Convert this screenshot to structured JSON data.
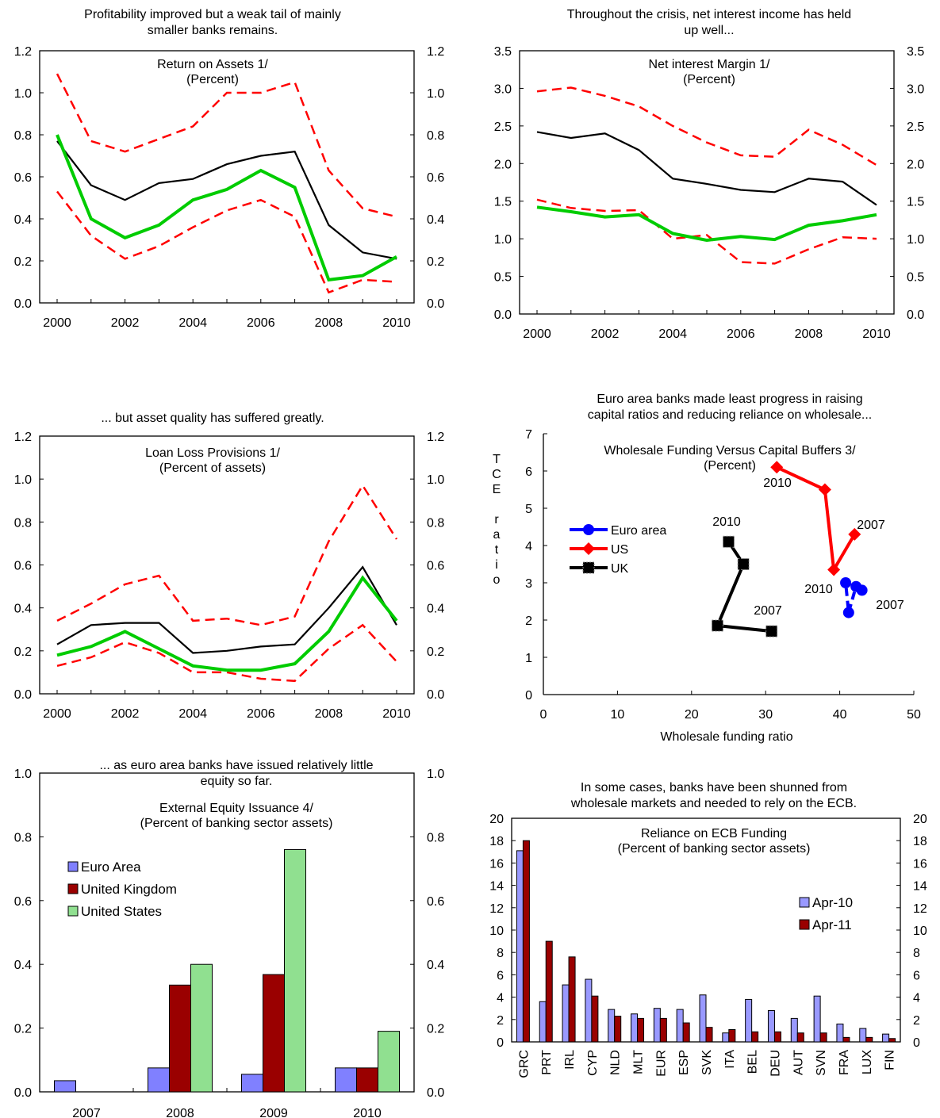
{
  "chart_data": [
    {
      "id": "roa",
      "type": "line",
      "header": [
        "Profitability improved but a weak tail of mainly",
        "smaller banks remains."
      ],
      "title": [
        "Return on Assets 1/",
        "(Percent)"
      ],
      "x": [
        2000,
        2001,
        2002,
        2003,
        2004,
        2005,
        2006,
        2007,
        2008,
        2009,
        2010
      ],
      "xticks": [
        "2000",
        "2002",
        "2004",
        "2006",
        "2008",
        "2010"
      ],
      "ylim": [
        0,
        1.2
      ],
      "yticks": [
        "0.0",
        "0.2",
        "0.4",
        "0.6",
        "0.8",
        "1.0",
        "1.2"
      ],
      "series": [
        {
          "values": [
            1.09,
            0.77,
            0.72,
            0.78,
            0.84,
            1.0,
            1.0,
            1.05,
            0.63,
            0.45,
            0.41
          ],
          "color": "#ff0000",
          "dash": true
        },
        {
          "values": [
            0.53,
            0.32,
            0.21,
            0.27,
            0.36,
            0.44,
            0.49,
            0.41,
            0.05,
            0.11,
            0.1
          ],
          "color": "#ff0000",
          "dash": true
        },
        {
          "values": [
            0.77,
            0.56,
            0.49,
            0.57,
            0.59,
            0.66,
            0.7,
            0.72,
            0.37,
            0.24,
            0.21
          ],
          "color": "#000000",
          "dash": false
        },
        {
          "values": [
            0.8,
            0.4,
            0.31,
            0.37,
            0.49,
            0.54,
            0.63,
            0.55,
            0.11,
            0.13,
            0.22
          ],
          "color": "#00cc00",
          "dash": false
        }
      ]
    },
    {
      "id": "nim",
      "type": "line",
      "header": [
        "Throughout the crisis, net interest income has held",
        "up well..."
      ],
      "title": [
        "Net interest Margin 1/",
        "(Percent)"
      ],
      "x": [
        2000,
        2001,
        2002,
        2003,
        2004,
        2005,
        2006,
        2007,
        2008,
        2009,
        2010
      ],
      "xticks": [
        "2000",
        "2002",
        "2004",
        "2006",
        "2008",
        "2010"
      ],
      "ylim": [
        0,
        3.5
      ],
      "yticks": [
        "0.0",
        "0.5",
        "1.0",
        "1.5",
        "2.0",
        "2.5",
        "3.0",
        "3.5"
      ],
      "series": [
        {
          "values": [
            2.96,
            3.01,
            2.9,
            2.76,
            2.5,
            2.28,
            2.11,
            2.09,
            2.45,
            2.25,
            1.98
          ],
          "color": "#ff0000",
          "dash": true
        },
        {
          "values": [
            1.52,
            1.41,
            1.37,
            1.38,
            1.0,
            1.05,
            0.69,
            0.67,
            0.86,
            1.02,
            1.0
          ],
          "color": "#ff0000",
          "dash": true
        },
        {
          "values": [
            2.42,
            2.34,
            2.4,
            2.18,
            1.8,
            1.73,
            1.65,
            1.62,
            1.8,
            1.76,
            1.45
          ],
          "color": "#000000",
          "dash": false
        },
        {
          "values": [
            1.42,
            1.36,
            1.29,
            1.32,
            1.07,
            0.98,
            1.03,
            0.99,
            1.18,
            1.24,
            1.32
          ],
          "color": "#00cc00",
          "dash": false
        }
      ]
    },
    {
      "id": "llp",
      "type": "line",
      "header": [
        "... but asset quality has suffered greatly."
      ],
      "title": [
        "Loan Loss Provisions 1/",
        "(Percent of assets)"
      ],
      "x": [
        2000,
        2001,
        2002,
        2003,
        2004,
        2005,
        2006,
        2007,
        2008,
        2009,
        2010
      ],
      "xticks": [
        "2000",
        "2002",
        "2004",
        "2006",
        "2008",
        "2010"
      ],
      "ylim": [
        0,
        1.2
      ],
      "yticks": [
        "0.0",
        "0.2",
        "0.4",
        "0.6",
        "0.8",
        "1.0",
        "1.2"
      ],
      "series": [
        {
          "values": [
            0.34,
            0.42,
            0.51,
            0.55,
            0.34,
            0.35,
            0.32,
            0.36,
            0.71,
            0.97,
            0.72
          ],
          "color": "#ff0000",
          "dash": true
        },
        {
          "values": [
            0.13,
            0.17,
            0.24,
            0.19,
            0.1,
            0.1,
            0.07,
            0.06,
            0.21,
            0.32,
            0.15
          ],
          "color": "#ff0000",
          "dash": true
        },
        {
          "values": [
            0.23,
            0.32,
            0.33,
            0.33,
            0.19,
            0.2,
            0.22,
            0.23,
            0.4,
            0.59,
            0.32
          ],
          "color": "#000000",
          "dash": false
        },
        {
          "values": [
            0.18,
            0.22,
            0.29,
            0.21,
            0.13,
            0.11,
            0.11,
            0.14,
            0.29,
            0.54,
            0.34
          ],
          "color": "#00cc00",
          "dash": false
        }
      ]
    },
    {
      "id": "wholesale",
      "type": "scatter",
      "header": [
        "Euro area banks made least progress in raising",
        "capital ratios and reducing reliance on wholesale..."
      ],
      "title": [
        "Wholesale Funding Versus Capital Buffers 3/",
        "(Percent)"
      ],
      "xlabel": "Wholesale funding ratio",
      "ylabel": [
        "T",
        "C",
        "E",
        "",
        "r",
        "a",
        "t",
        "i",
        "o"
      ],
      "xlim": [
        0,
        50
      ],
      "ylim": [
        0,
        7
      ],
      "xticks": [
        "0",
        "10",
        "20",
        "30",
        "40",
        "50"
      ],
      "yticks": [
        "0",
        "1",
        "2",
        "3",
        "4",
        "5",
        "6",
        "7"
      ],
      "legend": "left",
      "series": [
        {
          "name": "Euro area",
          "color": "#0000ff",
          "marker": "circle",
          "points": [
            [
              43.0,
              2.8
            ],
            [
              42.2,
              2.9
            ],
            [
              41.2,
              2.2
            ],
            [
              40.8,
              3.0
            ]
          ]
        },
        {
          "name": "US",
          "color": "#ff0000",
          "marker": "diamond",
          "points": [
            [
              42.0,
              4.3
            ],
            [
              39.2,
              3.35
            ],
            [
              38.0,
              5.5
            ],
            [
              31.5,
              6.1
            ]
          ]
        },
        {
          "name": "UK",
          "color": "#000000",
          "marker": "square",
          "points": [
            [
              30.8,
              1.7
            ],
            [
              23.5,
              1.85
            ],
            [
              27.0,
              3.5
            ],
            [
              25.0,
              4.1
            ]
          ]
        }
      ],
      "annotations": [
        "2010",
        "2007",
        "2010",
        "2007",
        "2010",
        "2007"
      ]
    },
    {
      "id": "equity",
      "type": "bar",
      "header": [
        "... as euro area banks have issued relatively little",
        "equity so far."
      ],
      "title": [
        "External Equity Issuance 4/",
        "(Percent of banking sector assets)"
      ],
      "categories": [
        "2007",
        "2008",
        "2009",
        "2010"
      ],
      "ylim": [
        0,
        1.0
      ],
      "yticks": [
        "0.0",
        "0.2",
        "0.4",
        "0.6",
        "0.8",
        "1.0"
      ],
      "legend": "top-left",
      "series": [
        {
          "name": "Euro Area",
          "color": "#8080ff",
          "values": [
            0.035,
            0.075,
            0.055,
            0.075
          ]
        },
        {
          "name": "United Kingdom",
          "color": "#9a0000",
          "values": [
            0.0,
            0.335,
            0.368,
            0.075
          ]
        },
        {
          "name": "United States",
          "color": "#90e090",
          "values": [
            0.0,
            0.4,
            0.76,
            0.19
          ]
        }
      ]
    },
    {
      "id": "ecb",
      "type": "bar",
      "header": [
        "In some cases, banks have been shunned from",
        "wholesale markets and needed to rely on the ECB."
      ],
      "title": [
        "Reliance on ECB Funding",
        "(Percent of banking sector assets)"
      ],
      "categories": [
        "GRC",
        "PRT",
        "IRL",
        "CYP",
        "NLD",
        "MLT",
        "EUR",
        "ESP",
        "SVK",
        "ITA",
        "BEL",
        "DEU",
        "AUT",
        "SVN",
        "FRA",
        "LUX",
        "FIN"
      ],
      "ylim": [
        0,
        20
      ],
      "yticks": [
        "0",
        "2",
        "4",
        "6",
        "8",
        "10",
        "12",
        "14",
        "16",
        "18",
        "20"
      ],
      "legend": "right",
      "series": [
        {
          "name": "Apr-10",
          "color": "#9999ff",
          "values": [
            17.1,
            3.6,
            5.1,
            5.6,
            2.9,
            2.5,
            3.0,
            2.9,
            4.2,
            0.8,
            3.8,
            2.8,
            2.1,
            4.1,
            1.6,
            1.2,
            0.7
          ]
        },
        {
          "name": "Apr-11",
          "color": "#9a0000",
          "values": [
            18.0,
            9.0,
            7.6,
            4.1,
            2.3,
            2.1,
            2.1,
            1.7,
            1.3,
            1.1,
            0.9,
            0.9,
            0.8,
            0.8,
            0.4,
            0.4,
            0.3
          ]
        }
      ]
    }
  ]
}
